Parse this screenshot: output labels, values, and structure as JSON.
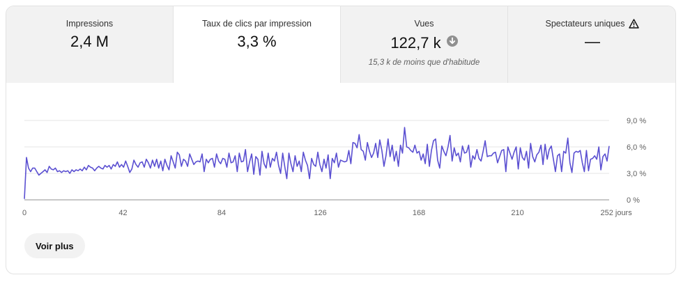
{
  "tabs": [
    {
      "label": "Impressions",
      "value": "2,4 M",
      "sub": "",
      "active": false,
      "warn": false,
      "down": false
    },
    {
      "label": "Taux de clics par impression",
      "value": "3,3 %",
      "sub": "",
      "active": true,
      "warn": false,
      "down": false
    },
    {
      "label": "Vues",
      "value": "122,7 k",
      "sub": "15,3 k de moins que d'habitude",
      "active": false,
      "warn": false,
      "down": true
    },
    {
      "label": "Spectateurs uniques",
      "value": "—",
      "sub": "",
      "active": false,
      "warn": true,
      "down": false
    }
  ],
  "more_button": "Voir plus",
  "colors": {
    "line": "#5a4fd1",
    "grid": "#e5e5e5",
    "axis": "#909090"
  },
  "chart_data": {
    "type": "line",
    "x_ticks": [
      "0",
      "42",
      "84",
      "126",
      "168",
      "210",
      "252 jours"
    ],
    "x_tick_values": [
      0,
      42,
      84,
      126,
      168,
      210,
      252
    ],
    "y_ticks": [
      "0 %",
      "3,0 %",
      "6,0 %",
      "9,0 %"
    ],
    "y_tick_values": [
      0,
      3,
      6,
      9
    ],
    "ylim": [
      0,
      9
    ],
    "xlim": [
      0,
      249
    ],
    "series": [
      {
        "values": [
          0.1,
          4.8,
          3.6,
          3.2,
          3.6,
          3.6,
          3.2,
          2.8,
          3.0,
          3.2,
          3.4,
          3.1,
          3.8,
          3.5,
          3.4,
          3.6,
          3.2,
          3.3,
          3.1,
          3.3,
          3.2,
          3.3,
          3.0,
          3.4,
          3.2,
          3.4,
          3.3,
          3.5,
          3.3,
          3.7,
          3.4,
          3.9,
          3.7,
          3.6,
          3.3,
          3.6,
          3.8,
          3.6,
          3.5,
          3.9,
          3.7,
          3.9,
          3.5,
          4.0,
          3.8,
          4.3,
          3.7,
          4.0,
          3.7,
          4.4,
          3.8,
          3.1,
          3.5,
          4.5,
          4.0,
          3.7,
          4.2,
          4.3,
          3.7,
          4.6,
          4.2,
          3.6,
          4.5,
          3.8,
          4.6,
          3.6,
          4.4,
          3.3,
          4.6,
          3.9,
          3.4,
          5.0,
          4.3,
          3.6,
          5.4,
          5.1,
          3.8,
          4.6,
          4.4,
          3.8,
          5.2,
          4.6,
          4.0,
          4.3,
          4.4,
          4.3,
          5.2,
          3.2,
          4.6,
          4.2,
          4.6,
          4.7,
          3.7,
          5.2,
          4.4,
          4.1,
          4.7,
          4.6,
          3.7,
          5.3,
          4.2,
          4.3,
          5.0,
          3.2,
          5.3,
          4.3,
          4.4,
          5.7,
          3.2,
          4.3,
          5.2,
          2.9,
          4.9,
          4.6,
          2.8,
          5.5,
          4.1,
          3.6,
          5.3,
          3.7,
          4.7,
          4.4,
          5.4,
          3.9,
          3.0,
          5.3,
          3.8,
          2.4,
          5.3,
          4.1,
          3.2,
          5.0,
          3.8,
          4.4,
          3.2,
          5.4,
          4.5,
          3.9,
          2.4,
          4.7,
          4.0,
          3.8,
          5.4,
          4.0,
          3.2,
          4.6,
          3.6,
          5.1,
          2.4,
          4.7,
          4.2,
          5.3,
          3.7,
          4.5,
          4.4,
          4.3,
          4.4,
          5.6,
          4.1,
          6.5,
          6.4,
          5.9,
          7.4,
          5.7,
          5.5,
          4.5,
          6.5,
          5.5,
          4.8,
          5.3,
          6.4,
          4.8,
          6.8,
          5.6,
          3.8,
          5.0,
          6.9,
          4.9,
          6.2,
          4.4,
          5.5,
          3.8,
          6.2,
          5.3,
          8.2,
          6.0,
          5.9,
          5.6,
          5.4,
          6.2,
          5.3,
          5.5,
          4.5,
          5.2,
          4.1,
          6.3,
          3.8,
          5.6,
          6.7,
          6.9,
          4.5,
          3.6,
          6.1,
          5.5,
          5.0,
          6.0,
          7.3,
          4.4,
          5.9,
          5.0,
          5.3,
          4.3,
          6.1,
          5.3,
          5.4,
          6.2,
          3.7,
          5.0,
          4.6,
          5.7,
          4.7,
          4.4,
          5.5,
          6.7,
          4.9,
          5.0,
          5.0,
          5.3,
          5.4,
          4.2,
          4.9,
          5.6,
          5.7,
          3.2,
          6.0,
          5.3,
          4.6,
          5.4,
          6.0,
          3.5,
          5.9,
          4.8,
          4.5,
          5.5,
          3.6,
          6.4,
          4.9,
          4.3,
          5.1,
          5.4,
          6.2,
          4.0,
          6.3,
          4.6,
          5.7,
          6.1,
          4.6,
          3.2,
          5.0,
          5.2,
          3.2,
          5.5,
          5.3,
          7.0,
          4.2,
          3.1,
          5.3,
          5.5,
          5.4,
          5.6,
          4.2,
          3.2,
          5.6,
          3.3,
          4.6,
          4.7,
          5.0,
          4.6,
          6.0,
          3.4,
          4.9,
          5.2,
          4.4,
          6.1
        ]
      }
    ]
  }
}
